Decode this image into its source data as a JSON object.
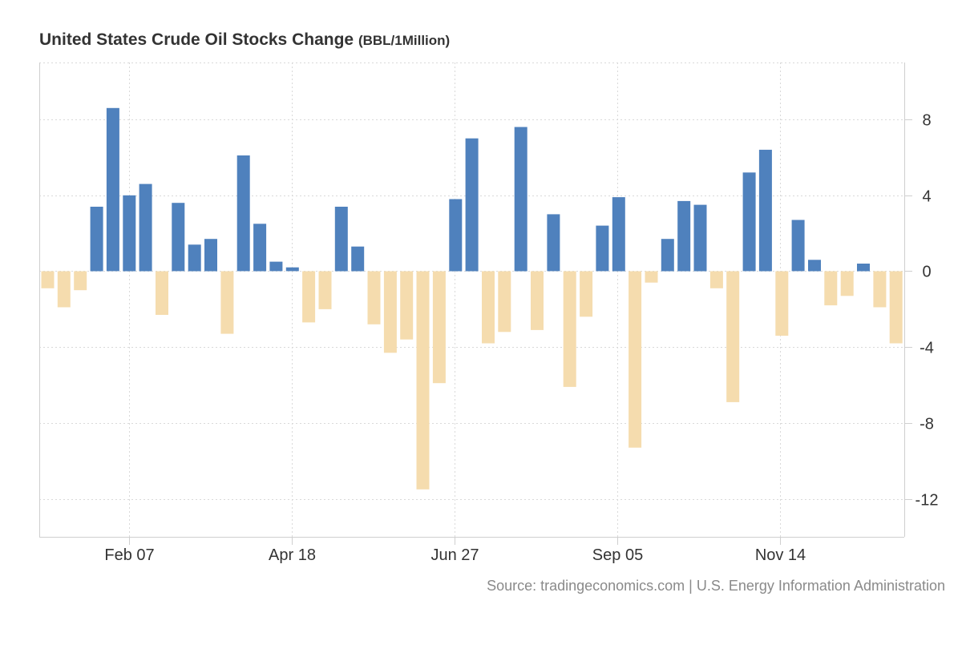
{
  "chart_data": {
    "type": "bar",
    "title": "United States Crude Oil Stocks Change",
    "unit": "(BBL/1Million)",
    "xlabel": "",
    "ylabel": "",
    "x_ticks": [
      "Feb 07",
      "Apr 18",
      "Jun 27",
      "Sep 05",
      "Nov 14"
    ],
    "y_ticks": [
      -12,
      -8,
      -4,
      0,
      4,
      8
    ],
    "ylim": [
      -14,
      11
    ],
    "grid": true,
    "legend": "none",
    "colors": {
      "positive": "#4f81bd",
      "negative": "#f5dcae",
      "grid": "#d9d9d9",
      "axis": "#cfcfcf"
    },
    "values": [
      -0.9,
      -1.9,
      -1.0,
      3.4,
      8.6,
      4.0,
      4.6,
      -2.3,
      3.6,
      1.4,
      1.7,
      -3.3,
      6.1,
      2.5,
      0.5,
      0.2,
      -2.7,
      -2.0,
      3.4,
      1.3,
      -2.8,
      -4.3,
      -3.6,
      -11.5,
      -5.9,
      3.8,
      7.0,
      -3.8,
      -3.2,
      7.6,
      -3.1,
      3.0,
      -6.1,
      -2.4,
      2.4,
      3.9,
      -9.3,
      -0.6,
      1.7,
      3.7,
      3.5,
      -0.9,
      -6.9,
      5.2,
      6.4,
      -3.4,
      2.7,
      0.6,
      -1.8,
      -1.3,
      0.4,
      -1.9,
      -3.8
    ]
  },
  "source": "Source: tradingeconomics.com | U.S. Energy Information Administration"
}
